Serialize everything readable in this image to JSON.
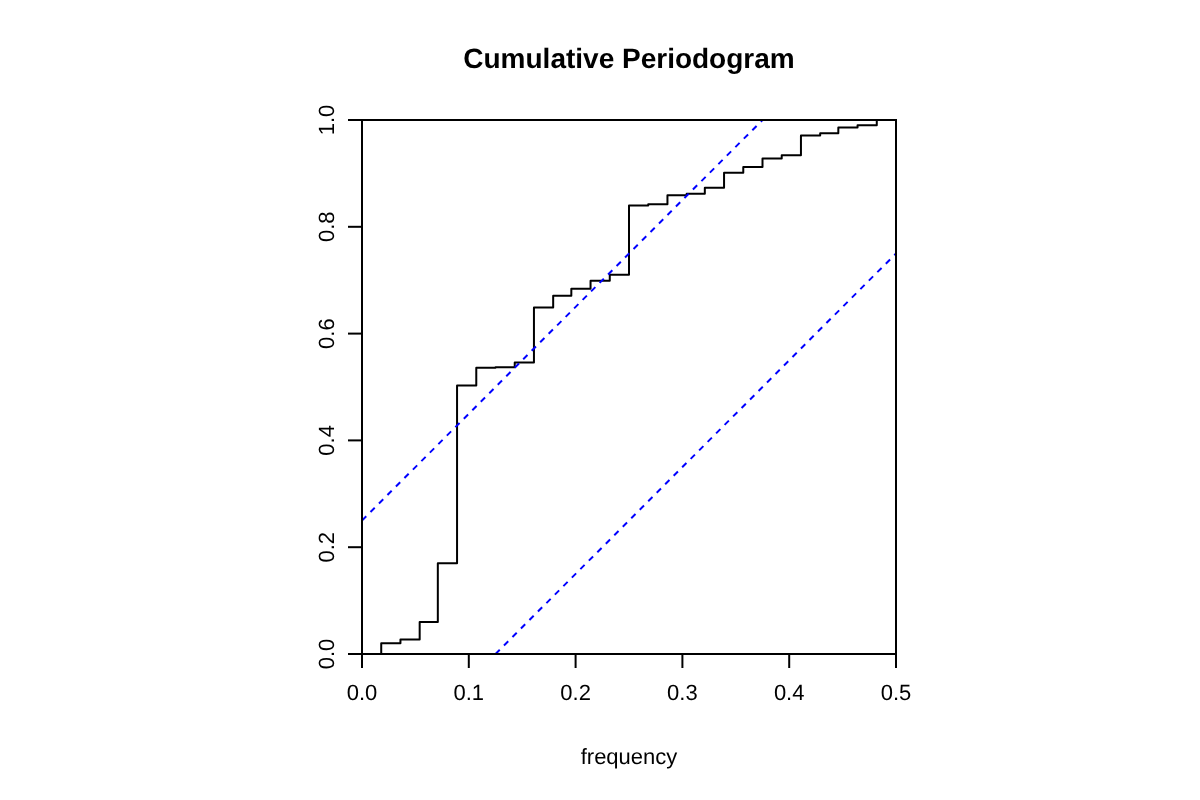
{
  "chart_data": {
    "type": "step",
    "title": "Cumulative Periodogram",
    "xlabel": "frequency",
    "xlim": [
      0,
      0.5
    ],
    "ylim": [
      0,
      1
    ],
    "xticks": [
      {
        "value": 0,
        "label": "0.0"
      },
      {
        "value": 0.1,
        "label": "0.1"
      },
      {
        "value": 0.2,
        "label": "0.2"
      },
      {
        "value": 0.3,
        "label": "0.3"
      },
      {
        "value": 0.4,
        "label": "0.4"
      },
      {
        "value": 0.5,
        "label": "0.5"
      }
    ],
    "yticks": [
      {
        "value": 0,
        "label": "0.0"
      },
      {
        "value": 0.2,
        "label": "0.2"
      },
      {
        "value": 0.4,
        "label": "0.4"
      },
      {
        "value": 0.6,
        "label": "0.6"
      },
      {
        "value": 0.8,
        "label": "0.8"
      },
      {
        "value": 1,
        "label": "1.0"
      }
    ],
    "grid": false,
    "series": [
      {
        "color": "#000000",
        "line_style": "solid",
        "x": [
          0,
          0.018,
          0.036,
          0.054,
          0.071,
          0.089,
          0.107,
          0.125,
          0.143,
          0.161,
          0.179,
          0.196,
          0.214,
          0.232,
          0.25,
          0.268,
          0.286,
          0.304,
          0.321,
          0.339,
          0.357,
          0.375,
          0.393,
          0.411,
          0.429,
          0.446,
          0.464,
          0.482,
          0.5
        ],
        "values": [
          0,
          0.02,
          0.027,
          0.06,
          0.17,
          0.503,
          0.536,
          0.537,
          0.546,
          0.649,
          0.671,
          0.684,
          0.699,
          0.71,
          0.84,
          0.842,
          0.859,
          0.862,
          0.873,
          0.901,
          0.912,
          0.928,
          0.934,
          0.971,
          0.975,
          0.986,
          0.99,
          1,
          1
        ]
      },
      {
        "type": "line",
        "color": "#0000ff",
        "line_style": "dashed",
        "x": [
          0,
          0.375
        ],
        "values": [
          0.25,
          1
        ]
      },
      {
        "type": "line",
        "color": "#0000ff",
        "line_style": "dashed",
        "x": [
          0.125,
          0.5
        ],
        "values": [
          0,
          0.75
        ]
      }
    ]
  }
}
